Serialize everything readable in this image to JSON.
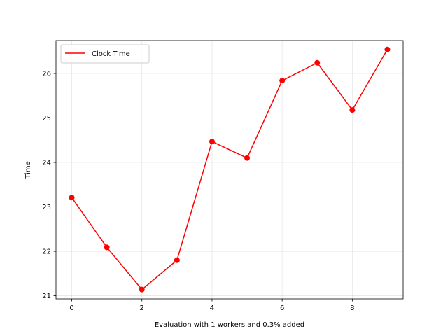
{
  "chart_data": {
    "type": "line",
    "title": "",
    "xlabel": "Evaluation with 1 workers and 0.3% added",
    "ylabel": "Time",
    "xlim": [
      -0.45,
      9.45
    ],
    "ylim": [
      20.93,
      26.74
    ],
    "xticks": [
      0,
      2,
      4,
      6,
      8
    ],
    "yticks": [
      21,
      22,
      23,
      24,
      25,
      26
    ],
    "grid": true,
    "legend": {
      "position": "top-left",
      "entries": [
        "Clock Time"
      ]
    },
    "series": [
      {
        "name": "Clock Time",
        "color": "#ff0000",
        "marker": "circle",
        "x": [
          0,
          1,
          2,
          3,
          4,
          5,
          6,
          7,
          8,
          9
        ],
        "y": [
          23.21,
          22.09,
          21.14,
          21.8,
          24.47,
          24.1,
          25.84,
          26.24,
          25.18,
          26.54
        ]
      }
    ]
  }
}
